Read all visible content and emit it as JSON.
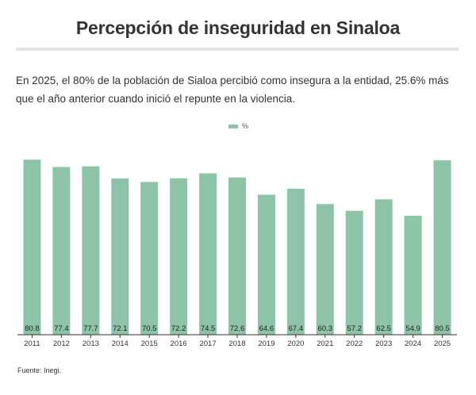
{
  "header": {
    "title": "Percepción de inseguridad en Sinaloa",
    "subtitle": "En 2025, el 80% de la población de Sialoa percibió como insegura a la entidad, 25.6% más que el año anterior cuando inició el repunte en la violencia."
  },
  "legend": {
    "label": "%"
  },
  "colors": {
    "bar": "#8dc4a8",
    "axis": "#333333",
    "rule": "#e4e4e4"
  },
  "chart_data": {
    "type": "bar",
    "categories": [
      "2011",
      "2012",
      "2013",
      "2014",
      "2015",
      "2016",
      "2017",
      "2018",
      "2019",
      "2020",
      "2021",
      "2022",
      "2023",
      "2024",
      "2025"
    ],
    "series": [
      {
        "name": "%",
        "values": [
          80.8,
          77.4,
          77.7,
          72.1,
          70.5,
          72.2,
          74.5,
          72.6,
          64.6,
          67.4,
          60.3,
          57.2,
          62.5,
          54.9,
          80.5
        ]
      }
    ],
    "data_labels": [
      "80.8",
      "77.4",
      "77.7",
      "72.1",
      "70.5",
      "72.2",
      "74.5",
      "72.6",
      "64.6",
      "67.4",
      "60.3",
      "57.2",
      "62.5",
      "54.9",
      "80.5"
    ],
    "ylim": [
      0,
      82
    ],
    "grid": false,
    "legend_position": "top-center"
  },
  "footer": {
    "source": "Fuente: Inegi."
  }
}
